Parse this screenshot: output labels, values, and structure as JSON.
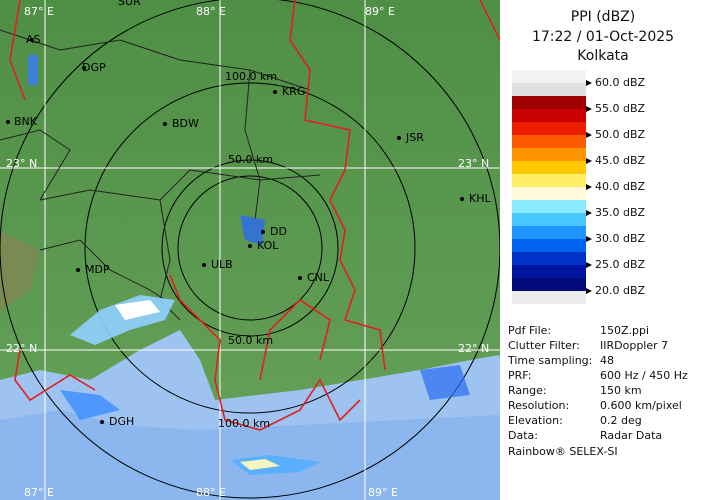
{
  "header": {
    "title": "PPI (dBZ)",
    "time": "17:22 / 01-Oct-2025",
    "station": "Kolkata"
  },
  "legend": {
    "bands": [
      {
        "label": "60.0 dBZ",
        "colors": [
          "#f2f2f2",
          "#e0e0e0"
        ]
      },
      {
        "label": "55.0 dBZ",
        "colors": [
          "#9c0000",
          "#c80000"
        ]
      },
      {
        "label": "50.0 dBZ",
        "colors": [
          "#f01e00",
          "#ff5a00"
        ]
      },
      {
        "label": "45.0 dBZ",
        "colors": [
          "#ff9600",
          "#ffc800"
        ]
      },
      {
        "label": "40.0 dBZ",
        "colors": [
          "#ffee66",
          "#fff8dc"
        ]
      },
      {
        "label": "35.0 dBZ",
        "colors": [
          "#8ceaff",
          "#46c8ff"
        ]
      },
      {
        "label": "30.0 dBZ",
        "colors": [
          "#1e96ff",
          "#0064f0"
        ]
      },
      {
        "label": "25.0 dBZ",
        "colors": [
          "#0032c8",
          "#0014a0"
        ]
      },
      {
        "label": "20.0 dBZ",
        "colors": [
          "#000a78",
          "#ececec"
        ]
      }
    ]
  },
  "info": {
    "rows": [
      [
        "Pdf File:",
        "150Z.ppi"
      ],
      [
        "Clutter Filter:",
        "IIRDoppler 7"
      ],
      [
        "Time sampling:",
        "48"
      ],
      [
        "PRF:",
        "600 Hz / 450 Hz"
      ],
      [
        "Range:",
        "150 km"
      ],
      [
        "Resolution:",
        "0.600 km/pixel"
      ],
      [
        "Elevation:",
        "0.2 deg"
      ],
      [
        "Data:",
        "Radar Data"
      ]
    ],
    "footer": "Rainbow® SELEX-SI"
  },
  "map": {
    "grid_labels": [
      "87° E",
      "88° E",
      "89° E",
      "23° N",
      "23° N",
      "22° N",
      "22° N",
      "87° E",
      "88° E",
      "89° E"
    ],
    "ring_labels": [
      "100.0 km",
      "50.0 km",
      "50.0 km",
      "100.0 km"
    ],
    "places": [
      "SUR",
      "AS",
      "DGP",
      "BNK",
      "BDW",
      "KRG",
      "JSR",
      "KHL",
      "DD",
      "KOL",
      "ULB",
      "CNL",
      "MDP",
      "DGH"
    ]
  }
}
